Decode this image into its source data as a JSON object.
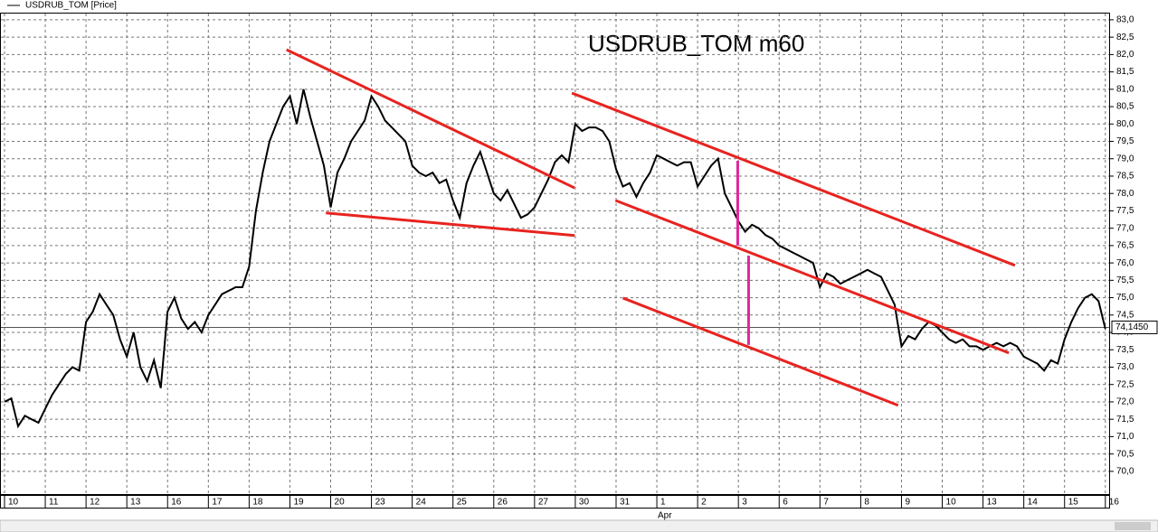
{
  "chart_data": {
    "type": "line",
    "title": "USDRUB_TOM m60",
    "legend_label": "USDRUB_TOM [Price]",
    "month_label": "Apr",
    "grid": true,
    "series": [
      {
        "name": "USDRUB_TOM [Price]",
        "color": "#000000",
        "x": [
          0,
          1,
          2,
          3,
          4,
          5,
          6,
          7,
          8,
          9,
          10,
          11,
          12,
          13,
          14,
          15,
          16,
          17,
          18,
          19,
          20,
          21,
          22,
          23,
          24,
          25,
          26,
          27,
          28,
          29,
          30,
          31,
          32,
          33,
          34,
          35,
          36,
          37,
          38,
          39,
          40,
          41,
          42,
          43,
          44,
          45,
          46,
          47,
          48,
          49,
          50,
          51,
          52,
          53,
          54,
          55,
          56,
          57,
          58,
          59,
          60,
          61,
          62,
          63,
          64,
          65,
          66,
          67,
          68,
          69,
          70,
          71,
          72,
          73,
          74,
          75,
          76,
          77,
          78,
          79,
          80,
          81,
          82,
          83,
          84,
          85,
          86,
          87,
          88,
          89,
          90,
          91,
          92,
          93,
          94,
          95,
          96,
          97,
          98,
          99,
          100,
          101,
          102,
          103,
          104,
          105,
          106,
          107,
          108,
          109,
          110,
          111,
          112,
          113,
          114,
          115,
          116,
          117,
          118,
          119,
          120,
          121,
          122,
          123,
          124,
          125,
          126,
          127,
          128,
          129,
          130,
          131,
          132,
          133,
          134,
          135,
          136,
          137,
          138,
          139,
          140,
          141,
          142,
          143,
          144,
          145,
          146,
          147,
          148,
          149,
          150,
          151,
          152,
          153,
          154,
          155,
          156,
          157,
          158,
          159,
          160,
          161,
          162
        ],
        "values": [
          72.0,
          72.1,
          71.3,
          71.6,
          71.5,
          71.4,
          71.8,
          72.2,
          72.5,
          72.8,
          73.0,
          72.9,
          74.3,
          74.6,
          75.1,
          74.8,
          74.5,
          73.8,
          73.3,
          74.0,
          73.0,
          72.6,
          73.2,
          72.4,
          74.6,
          75.0,
          74.4,
          74.1,
          74.3,
          74.0,
          74.5,
          74.8,
          75.1,
          75.2,
          75.3,
          75.3,
          75.9,
          77.5,
          78.6,
          79.5,
          80.0,
          80.5,
          80.8,
          80.0,
          81.0,
          80.2,
          79.5,
          78.8,
          77.6,
          78.6,
          79.0,
          79.5,
          79.8,
          80.1,
          80.8,
          80.5,
          80.1,
          79.9,
          79.7,
          79.5,
          78.8,
          78.6,
          78.5,
          78.6,
          78.3,
          78.4,
          77.8,
          77.3,
          78.3,
          78.8,
          79.2,
          78.6,
          78.0,
          77.8,
          78.1,
          77.7,
          77.3,
          77.4,
          77.6,
          78.0,
          78.4,
          78.9,
          79.1,
          78.9,
          80.0,
          79.8,
          79.9,
          79.9,
          79.8,
          79.5,
          78.7,
          78.2,
          78.3,
          77.9,
          78.3,
          78.6,
          79.1,
          79.0,
          78.9,
          78.8,
          78.9,
          78.9,
          78.2,
          78.5,
          78.8,
          79.0,
          78.0,
          77.6,
          77.2,
          76.9,
          77.1,
          77.0,
          76.8,
          76.7,
          76.5,
          76.4,
          76.3,
          76.2,
          76.1,
          76.0,
          75.3,
          75.7,
          75.6,
          75.4,
          75.5,
          75.6,
          75.7,
          75.8,
          75.7,
          75.6,
          75.2,
          74.8,
          73.6,
          73.9,
          73.8,
          74.1,
          74.3,
          74.2,
          74.0,
          73.8,
          73.7,
          73.8,
          73.6,
          73.6,
          73.5,
          73.6,
          73.7,
          73.6,
          73.7,
          73.6,
          73.3,
          73.2,
          73.1,
          72.9,
          73.2,
          73.1,
          73.8,
          74.3,
          74.7,
          75.0,
          75.1,
          74.9,
          74.1
        ]
      }
    ],
    "trendlines": [
      {
        "color": "#e8231f",
        "x": [
          41.5,
          83.9
        ],
        "y": [
          82.14,
          78.16
        ]
      },
      {
        "color": "#e8231f",
        "x": [
          47.3,
          83.9
        ],
        "y": [
          77.44,
          76.79
        ]
      },
      {
        "color": "#e8231f",
        "x": [
          83.5,
          148.7
        ],
        "y": [
          80.89,
          75.93
        ]
      },
      {
        "color": "#e8231f",
        "x": [
          89.9,
          147.8
        ],
        "y": [
          77.8,
          73.41
        ]
      },
      {
        "color": "#e8231f",
        "x": [
          91.0,
          131.5
        ],
        "y": [
          74.99,
          71.9
        ]
      },
      {
        "color": "#e0279c",
        "x": [
          107.9,
          107.9
        ],
        "y": [
          78.94,
          76.5
        ]
      },
      {
        "color": "#e0279c",
        "x": [
          109.5,
          109.5
        ],
        "y": [
          76.21,
          73.64
        ]
      }
    ],
    "last_price": {
      "value": 74.145,
      "label": "74,1450"
    },
    "xlim": [
      -0.53,
      162.56
    ],
    "ylim": [
      69.32,
      83.18
    ],
    "xticks": [
      {
        "value": 0,
        "label": "10"
      },
      {
        "value": 6,
        "label": "11"
      },
      {
        "value": 12,
        "label": "12"
      },
      {
        "value": 18,
        "label": "13"
      },
      {
        "value": 24,
        "label": "16"
      },
      {
        "value": 30,
        "label": "17"
      },
      {
        "value": 36,
        "label": "18"
      },
      {
        "value": 42,
        "label": "19"
      },
      {
        "value": 48,
        "label": "20"
      },
      {
        "value": 54,
        "label": "23"
      },
      {
        "value": 60,
        "label": "24"
      },
      {
        "value": 66,
        "label": "25"
      },
      {
        "value": 72,
        "label": "26"
      },
      {
        "value": 78,
        "label": "27"
      },
      {
        "value": 84,
        "label": "30"
      },
      {
        "value": 90,
        "label": "31"
      },
      {
        "value": 96,
        "label": "1"
      },
      {
        "value": 102,
        "label": "2"
      },
      {
        "value": 108,
        "label": "3"
      },
      {
        "value": 114,
        "label": "6"
      },
      {
        "value": 120,
        "label": "7"
      },
      {
        "value": 126,
        "label": "8"
      },
      {
        "value": 132,
        "label": "9"
      },
      {
        "value": 138,
        "label": "10"
      },
      {
        "value": 144,
        "label": "13"
      },
      {
        "value": 150,
        "label": "14"
      },
      {
        "value": 156,
        "label": "15"
      },
      {
        "value": 162,
        "label": "16"
      }
    ],
    "yticks": [
      {
        "value": 70,
        "label": "70,0"
      },
      {
        "value": 70.5,
        "label": "70,5"
      },
      {
        "value": 71,
        "label": "71,0"
      },
      {
        "value": 71.5,
        "label": "71,5"
      },
      {
        "value": 72,
        "label": "72,0"
      },
      {
        "value": 72.5,
        "label": "72,5"
      },
      {
        "value": 73,
        "label": "73,0"
      },
      {
        "value": 73.5,
        "label": "73,5"
      },
      {
        "value": 74,
        "label": "74,0"
      },
      {
        "value": 74.5,
        "label": "74,5"
      },
      {
        "value": 75,
        "label": "75,0"
      },
      {
        "value": 75.5,
        "label": "75,5"
      },
      {
        "value": 76,
        "label": "76,0"
      },
      {
        "value": 76.5,
        "label": "76,5"
      },
      {
        "value": 77,
        "label": "77,0"
      },
      {
        "value": 77.5,
        "label": "77,5"
      },
      {
        "value": 78,
        "label": "78,0"
      },
      {
        "value": 78.5,
        "label": "78,5"
      },
      {
        "value": 79,
        "label": "79,0"
      },
      {
        "value": 79.5,
        "label": "79,5"
      },
      {
        "value": 80,
        "label": "80,0"
      },
      {
        "value": 80.5,
        "label": "80,5"
      },
      {
        "value": 81,
        "label": "81,0"
      },
      {
        "value": 81.5,
        "label": "81,5"
      },
      {
        "value": 82,
        "label": "82,0"
      },
      {
        "value": 82.5,
        "label": "82,5"
      },
      {
        "value": 83,
        "label": "83,0"
      }
    ]
  }
}
